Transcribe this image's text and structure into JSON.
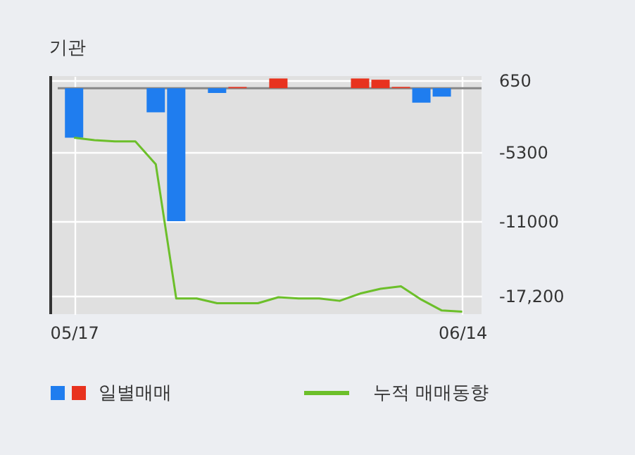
{
  "chart_data": {
    "type": "bar",
    "title": "기관",
    "categories": [
      "05/17",
      null,
      null,
      null,
      null,
      null,
      null,
      null,
      null,
      null,
      null,
      null,
      null,
      null,
      null,
      null,
      null,
      null,
      null,
      "06/14"
    ],
    "series": [
      {
        "name": "일별매매",
        "colors": [
          "#1f7def",
          "#1f7def",
          "#1f7def",
          "#1f7def",
          "#1f7def",
          "#1f7def",
          "#1f7def",
          "#1f7def",
          "#e8321e",
          "#e8321e",
          "#e8321e",
          "#e8321e",
          "#e8321e",
          "#e8321e",
          "#e8321e",
          "#e8321e",
          "#e8321e",
          "#1f7def",
          "#1f7def",
          "#1f7def"
        ],
        "values": [
          -4100,
          0,
          0,
          0,
          -2000,
          -11000,
          0,
          -400,
          100,
          0,
          800,
          0,
          0,
          0,
          800,
          700,
          100,
          -1200,
          -700,
          0
        ]
      },
      {
        "name": "누적 매매동향",
        "type": "line",
        "color": "#6cbf2a",
        "values": [
          -4100,
          -4300,
          -4400,
          -4400,
          -6300,
          -17400,
          -17400,
          -17800,
          -17800,
          -17800,
          -17300,
          -17400,
          -17400,
          -17600,
          -17000,
          -16600,
          -16400,
          -17500,
          -18400,
          -18500
        ]
      }
    ],
    "ylim": [
      -18700,
      1000
    ],
    "yticks": [
      650,
      -5300,
      -11000,
      {
        "value": -17200,
        "label": "-17,200"
      }
    ],
    "grid": true,
    "legend": "bottom"
  }
}
